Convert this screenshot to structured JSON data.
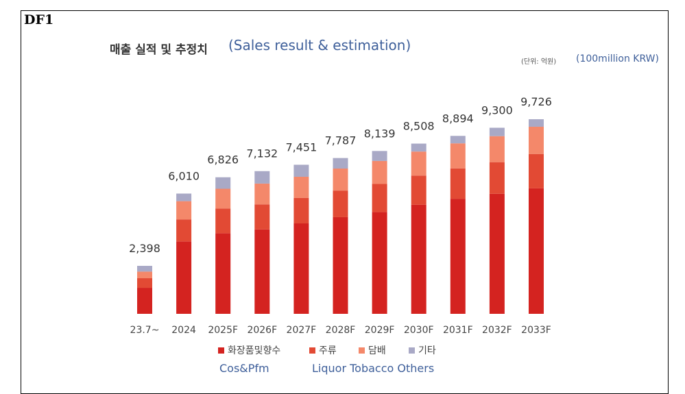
{
  "tag": "DF1",
  "title_ko": "매출 실적 및 추정치",
  "title_en": "(Sales result & estimation)",
  "unit_ko": "(단위: 억원)",
  "unit_en": "(100million KRW)",
  "legend_en": {
    "cos": "Cos&Pfm",
    "others": "Liquor Tobacco Others"
  },
  "colors": {
    "cosmetics": "#d42320",
    "liquor": "#e24a34",
    "tobacco": "#f4886a",
    "others": "#a9a9c6"
  },
  "chart_data": {
    "type": "bar",
    "stacked": true,
    "title": "매출 실적 및 추정치",
    "unit": "(단위: 억원)",
    "categories": [
      "23.7~",
      "2024",
      "2025F",
      "2026F",
      "2027F",
      "2028F",
      "2029F",
      "2030F",
      "2031F",
      "2032F",
      "2033F"
    ],
    "totals": [
      2398,
      6010,
      6826,
      7132,
      7451,
      7787,
      8139,
      8508,
      8894,
      9300,
      9726
    ],
    "total_labels": [
      "2,398",
      "6,010",
      "6,826",
      "7,132",
      "7,451",
      "7,787",
      "8,139",
      "8,508",
      "8,894",
      "9,300",
      "9,726"
    ],
    "series": [
      {
        "name": "화장품및향수",
        "key": "cosmetics",
        "values": [
          1300,
          3620,
          4030,
          4220,
          4520,
          4830,
          5090,
          5450,
          5750,
          6000,
          6270
        ]
      },
      {
        "name": "주류",
        "key": "liquor",
        "values": [
          480,
          1100,
          1230,
          1250,
          1270,
          1330,
          1400,
          1460,
          1520,
          1580,
          1720
        ]
      },
      {
        "name": "담배",
        "key": "tobacco",
        "values": [
          330,
          910,
          990,
          1040,
          1060,
          1100,
          1150,
          1200,
          1250,
          1300,
          1360
        ]
      },
      {
        "name": "기타",
        "key": "others",
        "values": [
          288,
          380,
          576,
          622,
          601,
          527,
          499,
          398,
          374,
          420,
          376
        ]
      }
    ],
    "ylim": [
      0,
      10000
    ],
    "grid": false,
    "legend": "bottom"
  }
}
